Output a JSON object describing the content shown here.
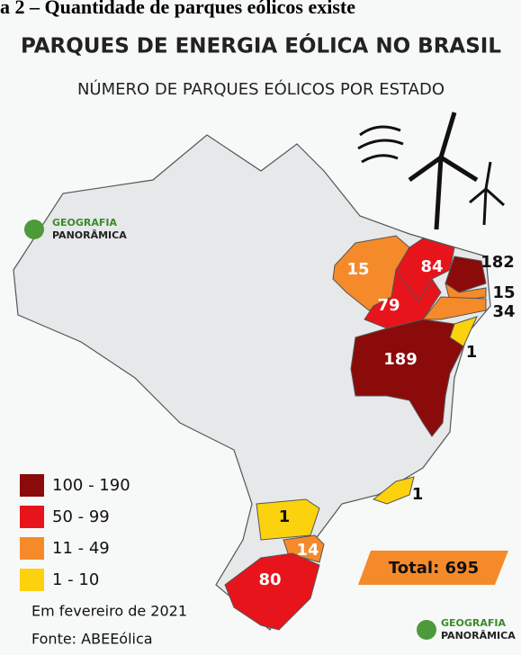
{
  "header": {
    "caption": "a 2 – Quantidade de parques eólicos existe",
    "title": "PARQUES DE ENERGIA EÓLICA NO BRASIL",
    "subtitle": "NÚMERO DE PARQUES EÓLICOS POR ESTADO"
  },
  "map": {
    "regions": [
      {
        "value": 15,
        "color": "#f58a2b"
      },
      {
        "value": 84,
        "color": "#e8141c"
      },
      {
        "value": 182,
        "color": "#8b0a0a"
      },
      {
        "value": 79,
        "color": "#e8141c"
      },
      {
        "value": 15,
        "color": "#f58a2b"
      },
      {
        "value": 34,
        "color": "#f58a2b"
      },
      {
        "value": 1,
        "color": "#fcd20f"
      },
      {
        "value": 189,
        "color": "#8b0a0a"
      },
      {
        "value": 1,
        "color": "#fcd20f"
      },
      {
        "value": 1,
        "color": "#fcd20f"
      },
      {
        "value": 14,
        "color": "#f58a2b"
      },
      {
        "value": 80,
        "color": "#e8141c"
      }
    ]
  },
  "legend": [
    {
      "label": "100 - 190",
      "color": "#8b0a0a"
    },
    {
      "label": "50 - 99",
      "color": "#e8141c"
    },
    {
      "label": "11 - 49",
      "color": "#f58a2b"
    },
    {
      "label": "1 - 10",
      "color": "#fcd20f"
    }
  ],
  "total": "Total: 695",
  "footer": {
    "date": "Em fevereiro de 2021",
    "source": "Fonte: ABEEólica"
  },
  "logo": {
    "line1": "GEOGRAFIA",
    "line2": "PANORÂMICA"
  }
}
